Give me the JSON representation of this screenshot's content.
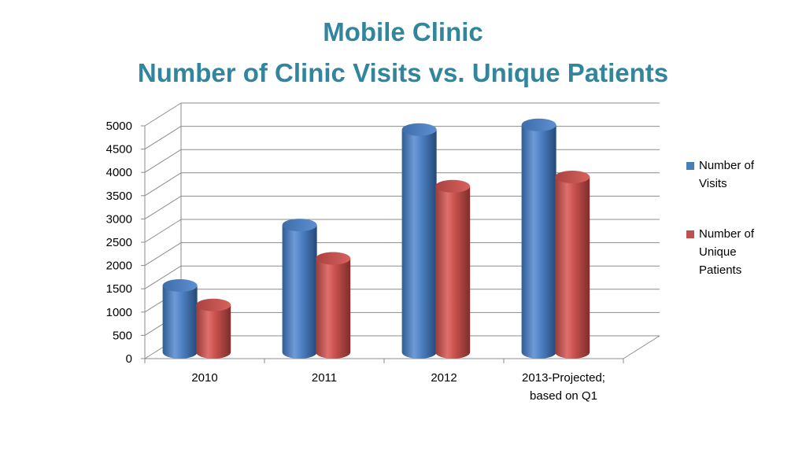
{
  "chart_data": {
    "type": "bar",
    "title_line1": "Mobile Clinic",
    "title_line2": "Number of Clinic Visits vs. Unique Patients",
    "categories": [
      "2010",
      "2011",
      "2012",
      "2013-Projected; based on Q1"
    ],
    "series": [
      {
        "name": "Number of Visits",
        "values": [
          1300,
          2600,
          4650,
          4750
        ],
        "color": "#4A7EBB"
      },
      {
        "name": "Number of Unique Patients",
        "values": [
          950,
          1950,
          3500,
          3700
        ],
        "color": "#C0504D"
      }
    ],
    "y_ticks": [
      "0",
      "500",
      "1000",
      "1500",
      "2000",
      "2500",
      "3000",
      "3500",
      "4000",
      "4500",
      "5000"
    ],
    "ylim": [
      0,
      5000
    ],
    "grid": true,
    "legend_position": "right",
    "style": "3d-cylinder"
  },
  "legend": {
    "items": [
      {
        "line1": "Number of",
        "line2": "Visits",
        "color": "#4A7EBB"
      },
      {
        "line1": "Number of",
        "line2": "Unique",
        "line3": "Patients",
        "color": "#C0504D"
      }
    ]
  }
}
